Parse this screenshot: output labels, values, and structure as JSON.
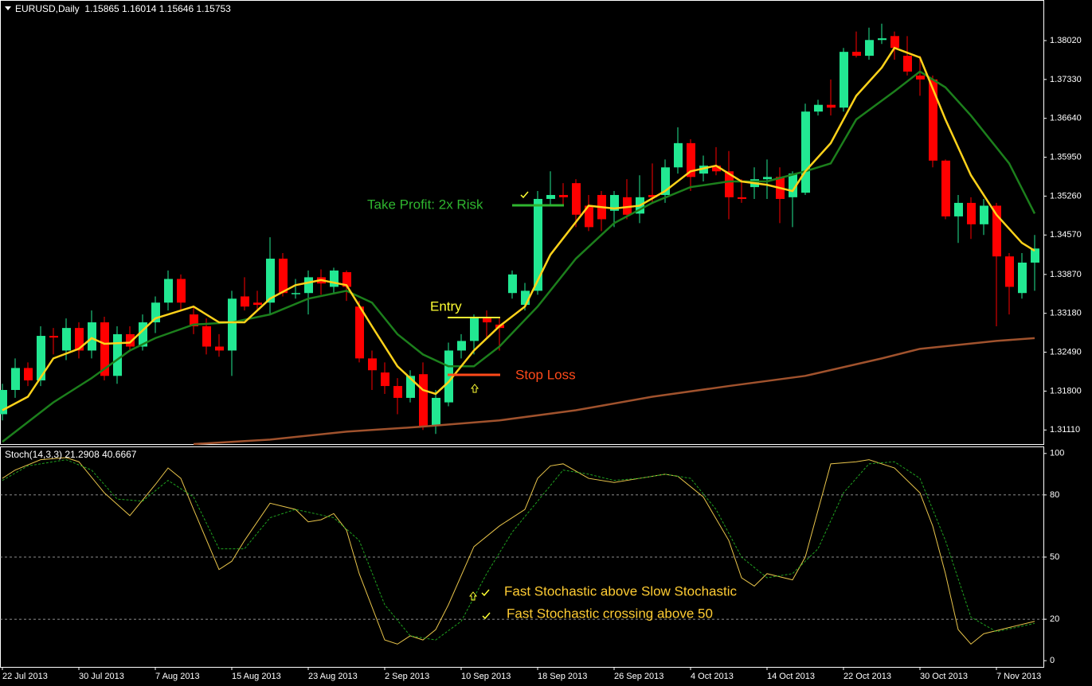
{
  "header": "EURUSD,Daily  1.15865 1.16014 1.15646 1.15753",
  "chart_data": [
    {
      "type": "candlestick",
      "categories": [
        "22 Jul 2013",
        null,
        null,
        null,
        null,
        null,
        "30 Jul 2013",
        null,
        null,
        null,
        null,
        null,
        "7 Aug 2013",
        null,
        null,
        null,
        null,
        null,
        "15 Aug 2013",
        null,
        null,
        null,
        null,
        null,
        "23 Aug 2013",
        null,
        null,
        null,
        null,
        null,
        "2 Sep 2013",
        null,
        null,
        null,
        null,
        null,
        "10 Sep 2013",
        null,
        null,
        null,
        null,
        null,
        "18 Sep 2013",
        null,
        null,
        null,
        null,
        null,
        "26 Sep 2013",
        null,
        null,
        null,
        null,
        null,
        "4 Oct 2013",
        null,
        null,
        null,
        null,
        null,
        "14 Oct 2013",
        null,
        null,
        null,
        null,
        null,
        "22 Oct 2013",
        null,
        null,
        null,
        null,
        null,
        "30 Oct 2013",
        null,
        null,
        null,
        null,
        null,
        "7 Nov 2013",
        null,
        null,
        null
      ],
      "open": [
        1.3139,
        1.3182,
        1.3221,
        1.3199,
        1.3278,
        1.3252,
        1.3292,
        1.3252,
        1.3302,
        1.3207,
        1.3281,
        1.3259,
        1.3302,
        1.3337,
        1.3379,
        1.3316,
        1.3295,
        1.3259,
        1.3252,
        1.3348,
        1.3337,
        1.3337,
        1.3415,
        1.3354,
        1.3354,
        1.3382,
        1.3365,
        1.3391,
        1.333,
        1.3238,
        1.3213,
        1.3189,
        1.3168,
        1.321,
        1.3118,
        1.316,
        1.3252,
        1.3269,
        1.3309,
        1.3298,
        1.3354,
        1.3333,
        1.3358,
        1.3521,
        1.3528,
        1.3549,
        1.3509,
        1.3528,
        1.35,
        1.3524,
        1.3495,
        1.3528,
        1.3528,
        1.3577,
        1.362,
        1.3566,
        1.358,
        1.357,
        1.3524,
        1.3542,
        1.3556,
        1.356,
        1.3524,
        1.3532,
        1.3676,
        1.3688,
        1.3683,
        1.3782,
        1.3775,
        1.3803,
        1.381,
        1.3775,
        1.374,
        1.3733,
        1.3589,
        1.349,
        1.3514,
        1.3476,
        1.3509,
        1.3419,
        1.3354,
        1.3408
      ],
      "high": [
        1.3193,
        1.3238,
        1.3231,
        1.3295,
        1.3292,
        1.3309,
        1.3302,
        1.3323,
        1.3312,
        1.3295,
        1.3295,
        1.3316,
        1.3348,
        1.3394,
        1.3387,
        1.333,
        1.3309,
        1.3281,
        1.3358,
        1.3382,
        1.3358,
        1.3453,
        1.3425,
        1.3379,
        1.3394,
        1.3396,
        1.3399,
        1.3394,
        1.334,
        1.3252,
        1.3231,
        1.3203,
        1.3217,
        1.3231,
        1.3182,
        1.3266,
        1.3281,
        1.3316,
        1.3323,
        1.3309,
        1.3394,
        1.3372,
        1.3535,
        1.357,
        1.3549,
        1.3556,
        1.3528,
        1.3535,
        1.3535,
        1.3556,
        1.3563,
        1.3584,
        1.3591,
        1.3648,
        1.3627,
        1.3598,
        1.3613,
        1.3606,
        1.3556,
        1.3577,
        1.3591,
        1.3577,
        1.357,
        1.369,
        1.3697,
        1.3733,
        1.3789,
        1.3818,
        1.3825,
        1.3832,
        1.3818,
        1.381,
        1.3775,
        1.374,
        1.3591,
        1.3528,
        1.3524,
        1.3521,
        1.3514,
        1.3425,
        1.3425,
        1.3457
      ],
      "low": [
        1.3128,
        1.3168,
        1.3189,
        1.3189,
        1.3245,
        1.3235,
        1.3238,
        1.3238,
        1.3199,
        1.3193,
        1.325,
        1.3252,
        1.3283,
        1.3323,
        1.3323,
        1.3281,
        1.3245,
        1.3241,
        1.3207,
        1.3323,
        1.3323,
        1.3316,
        1.3348,
        1.3344,
        1.3316,
        1.3351,
        1.3354,
        1.334,
        1.3231,
        1.3182,
        1.3175,
        1.3139,
        1.316,
        1.3111,
        1.3104,
        1.3153,
        1.3238,
        1.3245,
        1.3274,
        1.3252,
        1.3344,
        1.3323,
        1.3351,
        1.3509,
        1.3509,
        1.3471,
        1.3464,
        1.3464,
        1.3471,
        1.3485,
        1.3478,
        1.3514,
        1.3514,
        1.3566,
        1.3535,
        1.3552,
        1.3563,
        1.3485,
        1.3514,
        1.3521,
        1.3521,
        1.3478,
        1.3471,
        1.3528,
        1.3669,
        1.3669,
        1.3676,
        1.3772,
        1.3768,
        1.3796,
        1.3768,
        1.374,
        1.3704,
        1.3577,
        1.3485,
        1.3443,
        1.345,
        1.3457,
        1.3295,
        1.3316,
        1.3344,
        1.3358
      ],
      "close": [
        1.3182,
        1.3221,
        1.3199,
        1.3278,
        1.3275,
        1.3292,
        1.3252,
        1.3302,
        1.3207,
        1.3281,
        1.3259,
        1.3302,
        1.3337,
        1.3379,
        1.3337,
        1.3295,
        1.3259,
        1.3252,
        1.3344,
        1.333,
        1.3333,
        1.3415,
        1.3354,
        1.3354,
        1.3382,
        1.3371,
        1.3394,
        1.3365,
        1.3238,
        1.3217,
        1.3189,
        1.3168,
        1.3207,
        1.3118,
        1.3168,
        1.3252,
        1.3269,
        1.3309,
        1.3302,
        1.3292,
        1.3387,
        1.3358,
        1.3521,
        1.3528,
        1.3524,
        1.3493,
        1.3471,
        1.3485,
        1.3528,
        1.3493,
        1.3524,
        1.3524,
        1.3577,
        1.362,
        1.356,
        1.358,
        1.357,
        1.3524,
        1.3521,
        1.3556,
        1.356,
        1.3521,
        1.3566,
        1.3676,
        1.3688,
        1.3683,
        1.3782,
        1.3775,
        1.3803,
        1.3806,
        1.3789,
        1.3747,
        1.3733,
        1.3589,
        1.349,
        1.3514,
        1.3476,
        1.3509,
        1.3419,
        1.3365,
        1.3408,
        1.3433
      ],
      "up_color": "#22e892",
      "down_color": "#ff0000",
      "ylim": [
        1.3086,
        1.3874
      ],
      "yticks": [
        {
          "value": 1.3802,
          "label": "1.38020"
        },
        {
          "value": 1.3733,
          "label": "1.37330"
        },
        {
          "value": 1.3664,
          "label": "1.36640"
        },
        {
          "value": 1.3595,
          "label": "1.35950"
        },
        {
          "value": 1.3526,
          "label": "1.35260"
        },
        {
          "value": 1.3457,
          "label": "1.34570"
        },
        {
          "value": 1.3387,
          "label": "1.33870"
        },
        {
          "value": 1.3318,
          "label": "1.33180"
        },
        {
          "value": 1.3249,
          "label": "1.32490"
        },
        {
          "value": 1.318,
          "label": "1.31800"
        },
        {
          "value": 1.3111,
          "label": "1.31110"
        }
      ],
      "series": [
        {
          "color": "#a0522d",
          "x": [
            15,
            21,
            27,
            33,
            39,
            45,
            51,
            57,
            63,
            69,
            72,
            78,
            81
          ],
          "values": [
            1.3086,
            1.3094,
            1.3108,
            1.3117,
            1.3128,
            1.3146,
            1.317,
            1.3189,
            1.3207,
            1.3238,
            1.3255,
            1.3269,
            1.3274
          ]
        },
        {
          "color": "#1c7f1c",
          "x": [
            0,
            2,
            4,
            7,
            10,
            12,
            15,
            18,
            21,
            24,
            27,
            29,
            31,
            33,
            35,
            37,
            39,
            42,
            45,
            48,
            51,
            54,
            57,
            60,
            63,
            65,
            67,
            70,
            72,
            74,
            76,
            79,
            81
          ],
          "values": [
            1.309,
            1.3125,
            1.316,
            1.3203,
            1.3252,
            1.3274,
            1.3298,
            1.3302,
            1.3316,
            1.3344,
            1.3358,
            1.3337,
            1.3281,
            1.3245,
            1.3224,
            1.3224,
            1.3259,
            1.333,
            1.3415,
            1.3478,
            1.3514,
            1.3542,
            1.3552,
            1.3552,
            1.357,
            1.3584,
            1.3662,
            1.3712,
            1.3747,
            1.3719,
            1.3669,
            1.3584,
            1.3495
          ]
        },
        {
          "color": "#ffd21a",
          "x": [
            0,
            2,
            4,
            6,
            7,
            8,
            10,
            12,
            15,
            17,
            19,
            21,
            23,
            25,
            27,
            29,
            31,
            33,
            34,
            35,
            37,
            39,
            41,
            43,
            46,
            48,
            50,
            52,
            54,
            56,
            58,
            60,
            62,
            63,
            65,
            67,
            69,
            70,
            72,
            74,
            76,
            78,
            80,
            81
          ],
          "values": [
            1.3146,
            1.317,
            1.3238,
            1.3255,
            1.3274,
            1.3264,
            1.3266,
            1.3309,
            1.333,
            1.3302,
            1.3302,
            1.3344,
            1.3368,
            1.3377,
            1.3368,
            1.3295,
            1.3224,
            1.3182,
            1.3175,
            1.3196,
            1.3252,
            1.3295,
            1.333,
            1.3422,
            1.3509,
            1.3504,
            1.3509,
            1.3535,
            1.357,
            1.358,
            1.3552,
            1.3546,
            1.3535,
            1.357,
            1.362,
            1.3704,
            1.3754,
            1.3789,
            1.3772,
            1.3662,
            1.3563,
            1.3493,
            1.3443,
            1.3429
          ]
        }
      ],
      "annotations": [
        "Take Profit: 2x Risk",
        "Entry",
        "Stop Loss"
      ]
    },
    {
      "type": "line",
      "title": "Stoch(14,3,3) 21.2908 40.6667",
      "ylim": [
        -3,
        103
      ],
      "yticks": [
        100,
        80,
        50,
        20,
        0
      ],
      "series": [
        {
          "color": "#e8c44a",
          "x": [
            0,
            1,
            3,
            5,
            6,
            8,
            10,
            12,
            13,
            14,
            15,
            17,
            18,
            19,
            21,
            23,
            24,
            25,
            26,
            27,
            28,
            30,
            31,
            32,
            33,
            34,
            35,
            37,
            39,
            41,
            42,
            43,
            44,
            46,
            48,
            50,
            52,
            53,
            55,
            57,
            58,
            59,
            60,
            62,
            63,
            65,
            67,
            68,
            70,
            72,
            73,
            74,
            75,
            76,
            77,
            79,
            81
          ],
          "values": [
            88,
            92,
            97,
            98,
            96,
            81,
            70,
            85,
            93,
            88,
            73,
            44,
            48,
            58,
            76,
            73,
            67,
            68,
            71,
            63,
            42,
            10,
            8,
            12,
            10,
            15,
            27,
            55,
            65,
            73,
            88,
            94,
            95,
            88,
            86,
            88,
            90,
            89,
            79,
            58,
            40,
            36,
            42,
            39,
            50,
            95,
            96,
            97,
            93,
            81,
            65,
            42,
            15,
            8,
            13,
            16,
            19
          ]
        },
        {
          "color": "#1fa01f",
          "dashed": true,
          "x": [
            0,
            2,
            5,
            7,
            9,
            11,
            13,
            15,
            17,
            19,
            21,
            23,
            26,
            28,
            30,
            32,
            34,
            36,
            38,
            40,
            42,
            44,
            46,
            48,
            50,
            52,
            54,
            56,
            58,
            60,
            62,
            64,
            66,
            68,
            70,
            72,
            74,
            76,
            78,
            81
          ],
          "values": [
            87,
            94,
            97,
            92,
            78,
            77,
            87,
            79,
            54,
            54,
            69,
            73,
            69,
            58,
            27,
            12,
            10,
            19,
            42,
            62,
            77,
            92,
            90,
            87,
            88,
            90,
            88,
            73,
            50,
            40,
            42,
            54,
            81,
            95,
            96,
            88,
            58,
            21,
            14,
            18
          ]
        }
      ],
      "annotations": [
        "Fast Stochastic above Slow Stochastic",
        "Fast Stochastic crossing above 50"
      ]
    }
  ]
}
